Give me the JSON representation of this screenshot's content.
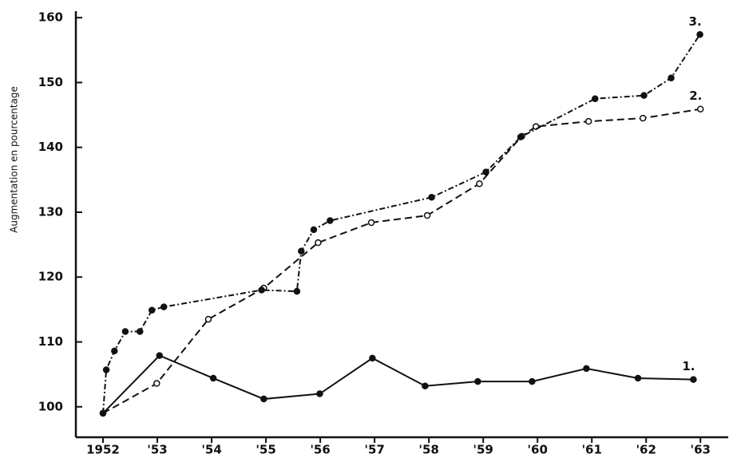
{
  "chart_data": {
    "type": "line",
    "y_label": "Augmentation en pourcentage",
    "xlim": [
      1951.5,
      1963.57
    ],
    "xticks": [
      {
        "value": 1952,
        "label": "1952"
      },
      {
        "value": 1953,
        "label": "'53"
      },
      {
        "value": 1954,
        "label": "'54"
      },
      {
        "value": 1955,
        "label": "'55"
      },
      {
        "value": 1956,
        "label": "'56"
      },
      {
        "value": 1957,
        "label": "'57"
      },
      {
        "value": 1958,
        "label": "'58"
      },
      {
        "value": 1959,
        "label": "'59"
      },
      {
        "value": 1960,
        "label": "'60"
      },
      {
        "value": 1961,
        "label": "'61"
      },
      {
        "value": 1962,
        "label": "'62"
      },
      {
        "value": 1963,
        "label": "'63"
      }
    ],
    "ylim": [
      95.3,
      161
    ],
    "yticks": [
      100,
      110,
      120,
      130,
      140,
      150,
      160
    ],
    "series": [
      {
        "name": "1.",
        "color": "#111111",
        "dash": "solid",
        "x": [
          1952,
          1953.04,
          1954.03,
          1954.96,
          1955.99,
          1956.96,
          1957.93,
          1958.9,
          1959.9,
          1960.9,
          1961.85,
          1962.87
        ],
        "values": [
          99,
          107.9,
          104.4,
          101.2,
          102.0,
          107.5,
          103.2,
          103.9,
          103.9,
          105.9,
          104.4,
          104.2
        ]
      },
      {
        "name": "2.",
        "color": "#111111",
        "dash": "dashed",
        "x": [
          1952,
          1952.99,
          1953.94,
          1954.96,
          1955.96,
          1956.94,
          1957.97,
          1958.93,
          1959.71,
          1959.97,
          1960.94,
          1961.94,
          1963.0
        ],
        "values": [
          99,
          103.6,
          113.5,
          118.3,
          125.3,
          128.4,
          129.5,
          134.4,
          141.7,
          143.2,
          144.0,
          144.5,
          145.9
        ]
      },
      {
        "name": "3.",
        "color": "#111111",
        "dash": "dashdot",
        "x": [
          1952,
          1952.06,
          1952.21,
          1952.41,
          1952.68,
          1952.9,
          1953.12,
          1954.92,
          1955.57,
          1955.65,
          1955.88,
          1956.18,
          1958.05,
          1959.05,
          1959.69,
          1961.06,
          1961.96,
          1962.46,
          1962.99
        ],
        "values": [
          99,
          105.7,
          108.6,
          111.6,
          111.6,
          114.9,
          115.4,
          118.0,
          117.8,
          124.0,
          127.3,
          128.7,
          132.3,
          136.2,
          141.6,
          147.5,
          148.0,
          150.7,
          157.4
        ]
      }
    ]
  }
}
